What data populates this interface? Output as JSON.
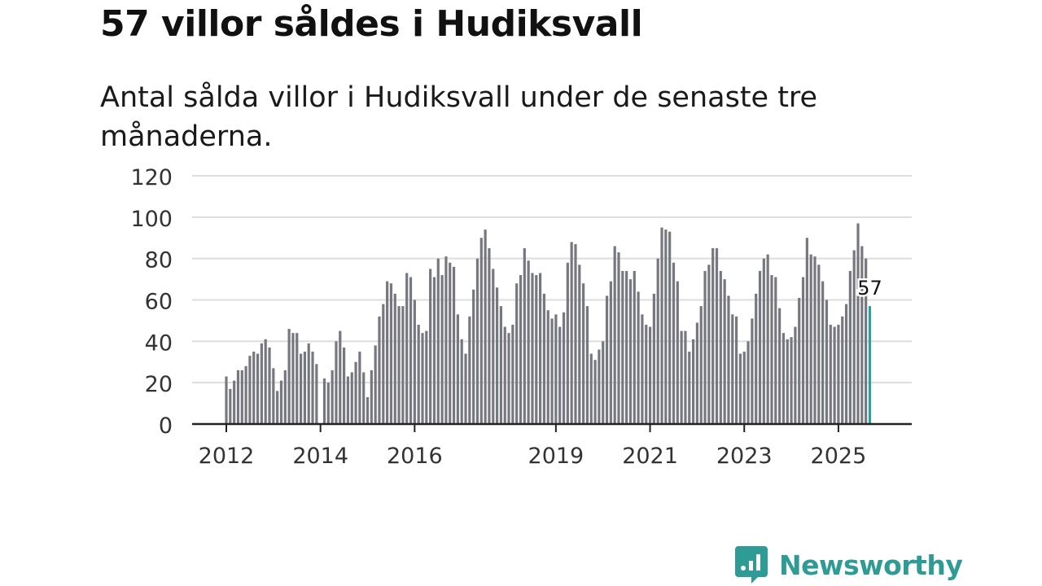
{
  "title": "57 villor såldes i Hudiksvall",
  "subtitle": "Antal sålda villor i Hudiksvall under de senaste tre månaderna.",
  "brand": {
    "name": "Newsworthy",
    "icon": "newsworthy-logo-icon"
  },
  "colors": {
    "bar": "#777780",
    "highlight": "#2aa19a",
    "grid": "#dddddd",
    "axis": "#222222",
    "text": "#333333",
    "brand": "#2e9c95"
  },
  "chart_data": {
    "type": "bar",
    "title": "57 villor såldes i Hudiksvall",
    "subtitle": "Antal sålda villor i Hudiksvall under de senaste tre månaderna.",
    "xlabel": "",
    "ylabel": "",
    "ylim": [
      0,
      120
    ],
    "yticks": [
      0,
      20,
      40,
      60,
      80,
      100,
      120
    ],
    "xticks": [
      {
        "label": "2012",
        "index": 0
      },
      {
        "label": "2014",
        "index": 24
      },
      {
        "label": "2016",
        "index": 48
      },
      {
        "label": "2019",
        "index": 84
      },
      {
        "label": "2021",
        "index": 108
      },
      {
        "label": "2023",
        "index": 132
      },
      {
        "label": "2025",
        "index": 156
      }
    ],
    "start": "2012-01",
    "values": [
      23,
      17,
      21,
      26,
      26,
      28,
      33,
      35,
      34,
      39,
      41,
      37,
      27,
      16,
      21,
      26,
      46,
      44,
      44,
      34,
      35,
      39,
      35,
      29,
      null,
      22,
      20,
      26,
      40,
      45,
      37,
      23,
      25,
      30,
      35,
      25,
      13,
      26,
      38,
      52,
      58,
      69,
      68,
      63,
      57,
      57,
      73,
      71,
      60,
      48,
      44,
      45,
      75,
      71,
      80,
      72,
      81,
      78,
      76,
      53,
      41,
      34,
      52,
      65,
      80,
      90,
      94,
      85,
      75,
      66,
      57,
      47,
      44,
      48,
      68,
      72,
      85,
      79,
      73,
      72,
      73,
      63,
      55,
      51,
      53,
      47,
      54,
      78,
      88,
      87,
      77,
      68,
      57,
      34,
      31,
      36,
      40,
      62,
      69,
      86,
      83,
      74,
      74,
      70,
      74,
      64,
      53,
      48,
      47,
      63,
      80,
      95,
      94,
      93,
      78,
      69,
      45,
      45,
      35,
      41,
      49,
      57,
      74,
      77,
      85,
      85,
      74,
      70,
      62,
      53,
      52,
      34,
      35,
      40,
      51,
      63,
      74,
      80,
      82,
      72,
      71,
      56,
      44,
      41,
      42,
      47,
      61,
      71,
      90,
      82,
      81,
      77,
      69,
      60,
      48,
      47,
      48,
      52,
      58,
      74,
      84,
      97,
      86,
      80,
      57
    ],
    "highlight": {
      "index": 164,
      "value": 57,
      "label": "57"
    }
  }
}
